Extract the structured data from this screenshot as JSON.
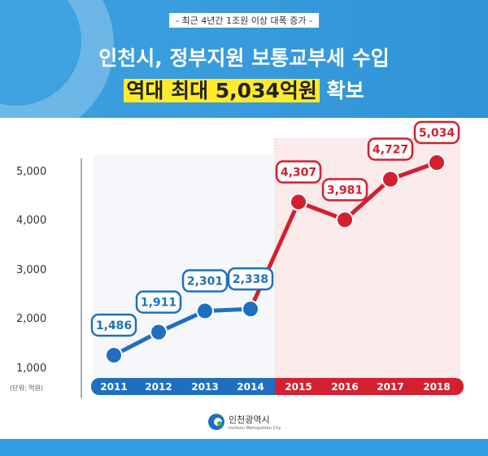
{
  "header": {
    "subtitle": "- 최근 4년간 1조원 이상 대폭 증가 -",
    "title": "인천시, 정부지원 보통교부세 수입",
    "highlight": "역대 최대 5,034억원",
    "title_suffix": "확보"
  },
  "chart_data": {
    "type": "line",
    "title": "인천시, 정부지원 보통교부세 수입",
    "categories": [
      "2011",
      "2012",
      "2013",
      "2014",
      "2015",
      "2016",
      "2017",
      "2018"
    ],
    "values": [
      1486,
      1911,
      2301,
      2338,
      4307,
      3981,
      4727,
      5034
    ],
    "labels": [
      "1,486",
      "1,911",
      "2,301",
      "2,338",
      "4,307",
      "3,981",
      "4,727",
      "5,034"
    ],
    "ylim": [
      1000,
      5000
    ],
    "yticks": [
      "1,000",
      "2,000",
      "3,000",
      "4,000",
      "5,000"
    ],
    "ylabel": "(단위: 억원)",
    "colors": {
      "before": "#1f6fc0",
      "after": "#d3202f"
    }
  },
  "logo": {
    "name": "인천광역시",
    "en": "Incheon Metropolitan City"
  }
}
